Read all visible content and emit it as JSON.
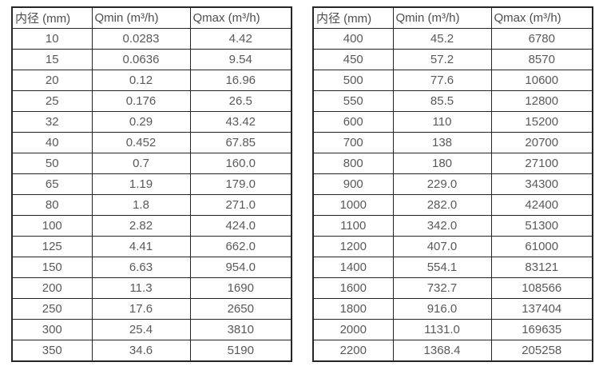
{
  "page": {
    "background": "#ffffff"
  },
  "colors": {
    "border": "#262626",
    "cell_text": "#595959",
    "header_text": "#4d4d4d"
  },
  "tables": [
    {
      "name": "flow-rate-table-small-diameters",
      "headers": [
        "内径 (mm)",
        "Qmin (m³/h)",
        "Qmax (m³/h)"
      ],
      "rows": [
        [
          "10",
          "0.0283",
          "4.42"
        ],
        [
          "15",
          "0.0636",
          "9.54"
        ],
        [
          "20",
          "0.12",
          "16.96"
        ],
        [
          "25",
          "0.176",
          "26.5"
        ],
        [
          "32",
          "0.29",
          "43.42"
        ],
        [
          "40",
          "0.452",
          "67.85"
        ],
        [
          "50",
          "0.7",
          "160.0"
        ],
        [
          "65",
          "1.19",
          "179.0"
        ],
        [
          "80",
          "1.8",
          "271.0"
        ],
        [
          "100",
          "2.82",
          "424.0"
        ],
        [
          "125",
          "4.41",
          "662.0"
        ],
        [
          "150",
          "6.63",
          "954.0"
        ],
        [
          "200",
          "11.3",
          "1690"
        ],
        [
          "250",
          "17.6",
          "2650"
        ],
        [
          "300",
          "25.4",
          "3810"
        ],
        [
          "350",
          "34.6",
          "5190"
        ]
      ]
    },
    {
      "name": "flow-rate-table-large-diameters",
      "headers": [
        "内径 (mm)",
        "Qmin (m³/h)",
        "Qmax (m³/h)"
      ],
      "rows": [
        [
          "400",
          "45.2",
          "6780"
        ],
        [
          "450",
          "57.2",
          "8570"
        ],
        [
          "500",
          "77.6",
          "10600"
        ],
        [
          "550",
          "85.5",
          "12800"
        ],
        [
          "600",
          "110",
          "15200"
        ],
        [
          "700",
          "138",
          "20700"
        ],
        [
          "800",
          "180",
          "27100"
        ],
        [
          "900",
          "229.0",
          "34300"
        ],
        [
          "1000",
          "282.0",
          "42400"
        ],
        [
          "1100",
          "342.0",
          "51300"
        ],
        [
          "1200",
          "407.0",
          "61000"
        ],
        [
          "1400",
          "554.1",
          "83121"
        ],
        [
          "1600",
          "732.7",
          "108566"
        ],
        [
          "1800",
          "916.0",
          "137404"
        ],
        [
          "2000",
          "1131.0",
          "169635"
        ],
        [
          "2200",
          "1368.4",
          "205258"
        ]
      ]
    }
  ]
}
